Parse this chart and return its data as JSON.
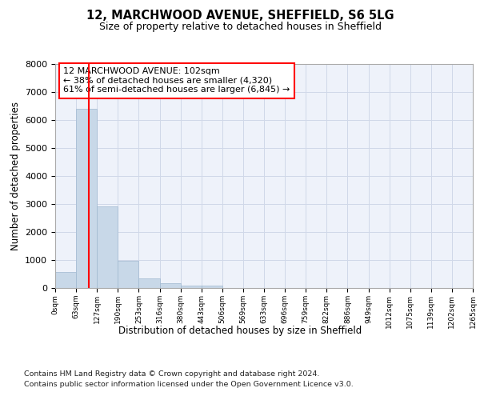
{
  "title_line1": "12, MARCHWOOD AVENUE, SHEFFIELD, S6 5LG",
  "title_line2": "Size of property relative to detached houses in Sheffield",
  "xlabel": "Distribution of detached houses by size in Sheffield",
  "ylabel": "Number of detached properties",
  "bar_color": "#c8d8e8",
  "bar_edge_color": "#a0b8d0",
  "bar_heights": [
    560,
    6400,
    2920,
    980,
    350,
    170,
    100,
    75,
    0,
    0,
    0,
    0,
    0,
    0,
    0,
    0,
    0,
    0,
    0,
    0
  ],
  "bin_labels": [
    "0sqm",
    "63sqm",
    "127sqm",
    "190sqm",
    "253sqm",
    "316sqm",
    "380sqm",
    "443sqm",
    "506sqm",
    "569sqm",
    "633sqm",
    "696sqm",
    "759sqm",
    "822sqm",
    "886sqm",
    "949sqm",
    "1012sqm",
    "1075sqm",
    "1139sqm",
    "1202sqm",
    "1265sqm"
  ],
  "ylim": [
    0,
    8000
  ],
  "yticks": [
    0,
    1000,
    2000,
    3000,
    4000,
    5000,
    6000,
    7000,
    8000
  ],
  "property_size_sqm": 102,
  "annotation_text": "12 MARCHWOOD AVENUE: 102sqm\n← 38% of detached houses are smaller (4,320)\n61% of semi-detached houses are larger (6,845) →",
  "footer_line1": "Contains HM Land Registry data © Crown copyright and database right 2024.",
  "footer_line2": "Contains public sector information licensed under the Open Government Licence v3.0.",
  "grid_color": "#d0d8e8",
  "plot_bg_color": "#eef2fa"
}
